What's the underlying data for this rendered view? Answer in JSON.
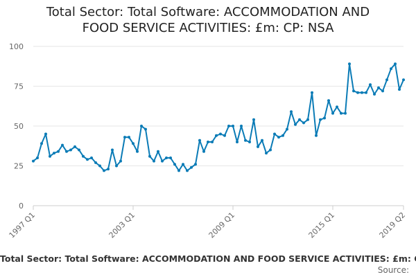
{
  "chart_data": {
    "type": "line",
    "title": "Total Sector: Total Software: ACCOMMODATION AND FOOD SERVICE ACTIVITIES: £m: CP: NSA",
    "xlabel": "",
    "ylabel": "",
    "ylim": [
      0,
      100
    ],
    "yticks": [
      0,
      25,
      50,
      75,
      100
    ],
    "xticks": [
      "1997 Q1",
      "2003 Q1",
      "2009 Q1",
      "2015 Q1",
      "2019 Q2"
    ],
    "grid": true,
    "legend_position": "bottom",
    "source": "Source:",
    "line_color": "#0a7bb6",
    "series": [
      {
        "name": "Total Sector: Total Software: ACCOMMODATION AND FOOD SERVICE ACTIVITIES: £m: CP: NSA",
        "x": [
          "1997 Q1",
          "1997 Q2",
          "1997 Q3",
          "1997 Q4",
          "1998 Q1",
          "1998 Q2",
          "1998 Q3",
          "1998 Q4",
          "1999 Q1",
          "1999 Q2",
          "1999 Q3",
          "1999 Q4",
          "2000 Q1",
          "2000 Q2",
          "2000 Q3",
          "2000 Q4",
          "2001 Q1",
          "2001 Q2",
          "2001 Q3",
          "2001 Q4",
          "2002 Q1",
          "2002 Q2",
          "2002 Q3",
          "2002 Q4",
          "2003 Q1",
          "2003 Q2",
          "2003 Q3",
          "2003 Q4",
          "2004 Q1",
          "2004 Q2",
          "2004 Q3",
          "2004 Q4",
          "2005 Q1",
          "2005 Q2",
          "2005 Q3",
          "2005 Q4",
          "2006 Q1",
          "2006 Q2",
          "2006 Q3",
          "2006 Q4",
          "2007 Q1",
          "2007 Q2",
          "2007 Q3",
          "2007 Q4",
          "2008 Q1",
          "2008 Q2",
          "2008 Q3",
          "2008 Q4",
          "2009 Q1",
          "2009 Q2",
          "2009 Q3",
          "2009 Q4",
          "2010 Q1",
          "2010 Q2",
          "2010 Q3",
          "2010 Q4",
          "2011 Q1",
          "2011 Q2",
          "2011 Q3",
          "2011 Q4",
          "2012 Q1",
          "2012 Q2",
          "2012 Q3",
          "2012 Q4",
          "2013 Q1",
          "2013 Q2",
          "2013 Q3",
          "2013 Q4",
          "2014 Q1",
          "2014 Q2",
          "2014 Q3",
          "2014 Q4",
          "2015 Q1",
          "2015 Q2",
          "2015 Q3",
          "2015 Q4",
          "2016 Q1",
          "2016 Q2",
          "2016 Q3",
          "2016 Q4",
          "2017 Q1",
          "2017 Q2",
          "2017 Q3",
          "2017 Q4",
          "2018 Q1",
          "2018 Q2",
          "2018 Q3",
          "2018 Q4",
          "2019 Q1",
          "2019 Q2"
        ],
        "values": [
          28,
          30,
          39,
          45,
          31,
          33,
          34,
          38,
          34,
          35,
          37,
          35,
          31,
          29,
          30,
          27,
          25,
          22,
          23,
          35,
          25,
          28,
          43,
          43,
          39,
          34,
          50,
          48,
          31,
          28,
          34,
          28,
          30,
          30,
          26,
          22,
          26,
          22,
          24,
          26,
          41,
          34,
          40,
          40,
          44,
          45,
          44,
          50,
          50,
          40,
          50,
          41,
          40,
          54,
          37,
          41,
          33,
          35,
          45,
          43,
          44,
          48,
          59,
          51,
          54,
          52,
          54,
          71,
          44,
          54,
          55,
          66,
          58,
          62,
          58,
          58,
          89,
          72,
          71,
          71,
          71,
          76,
          70,
          74,
          72,
          79,
          86,
          89,
          73,
          79
        ]
      }
    ]
  }
}
